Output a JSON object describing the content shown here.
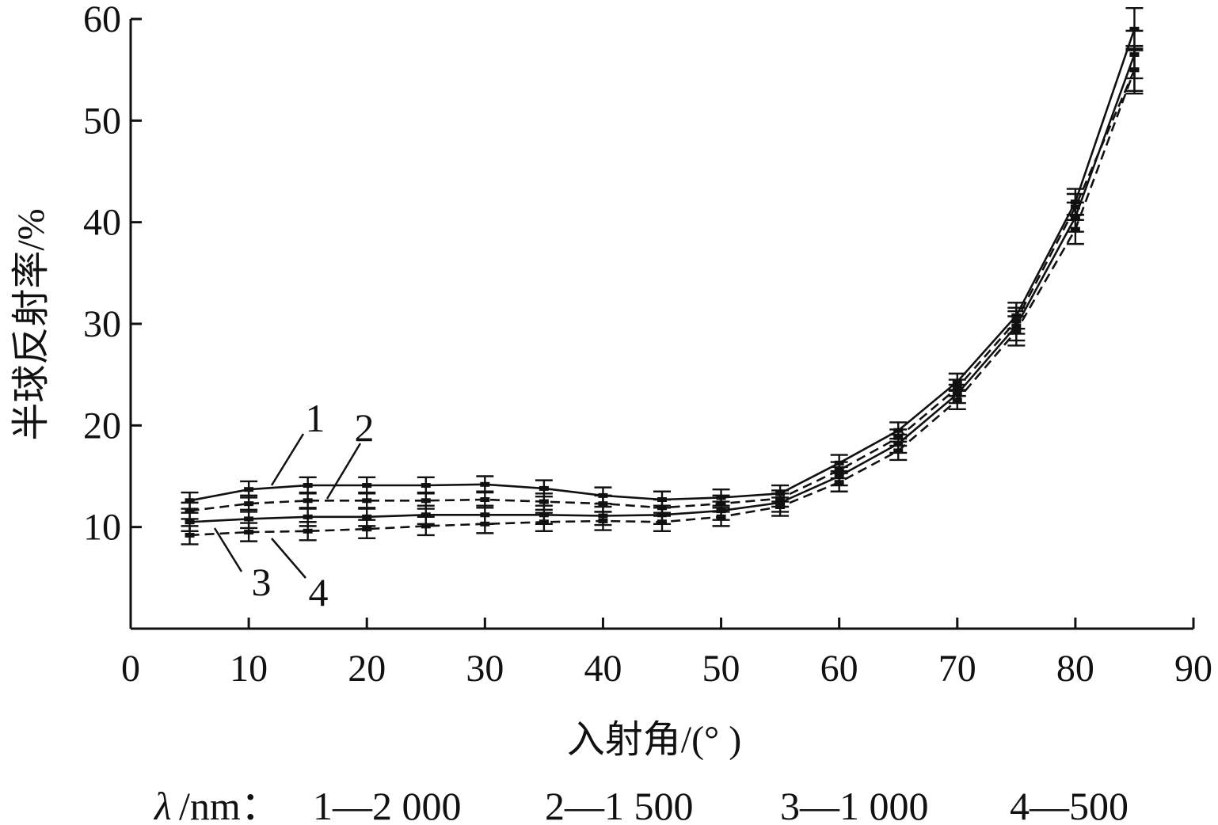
{
  "chart_data": {
    "type": "line",
    "xlabel": "入射角/(° )",
    "ylabel": "半球反射率/%",
    "xlim": [
      0,
      90
    ],
    "ylim": [
      0,
      60
    ],
    "x_ticks": [
      "0",
      "10",
      "20",
      "30",
      "40",
      "50",
      "60",
      "70",
      "80",
      "90"
    ],
    "y_ticks": [
      "10",
      "20",
      "30",
      "40",
      "50",
      "60"
    ],
    "grid": false,
    "legend": {
      "prefix_symbol": "λ",
      "prefix_unit": "/nm：",
      "entries": [
        "1—2 000",
        "2—1 500",
        "3—1 000",
        "4—500"
      ]
    },
    "x": [
      5,
      10,
      15,
      20,
      25,
      30,
      35,
      40,
      45,
      50,
      55,
      60,
      65,
      70,
      75,
      80,
      85
    ],
    "series": [
      {
        "name": "1",
        "dash": "solid",
        "values": [
          12.6,
          13.7,
          14.1,
          14.1,
          14.1,
          14.2,
          13.8,
          13.1,
          12.7,
          12.9,
          13.3,
          16.3,
          19.5,
          24.3,
          30.8,
          42.0,
          59.0
        ],
        "error": 0.8
      },
      {
        "name": "2",
        "dash": "dashed",
        "values": [
          11.6,
          12.3,
          12.6,
          12.6,
          12.6,
          12.7,
          12.5,
          12.3,
          11.9,
          12.3,
          12.8,
          15.6,
          18.8,
          23.7,
          30.3,
          41.5,
          55.0
        ],
        "error": 0.8
      },
      {
        "name": "3",
        "dash": "solid",
        "values": [
          10.5,
          10.8,
          11.0,
          11.0,
          11.2,
          11.2,
          11.2,
          11.1,
          11.2,
          11.6,
          12.4,
          15.0,
          18.2,
          23.1,
          29.8,
          40.5,
          56.5
        ],
        "error": 0.9
      },
      {
        "name": "4",
        "dash": "dashed",
        "values": [
          9.2,
          9.5,
          9.6,
          9.8,
          10.1,
          10.3,
          10.5,
          10.6,
          10.5,
          11.0,
          12.0,
          14.4,
          17.5,
          22.5,
          29.3,
          39.3,
          55.0
        ],
        "error": 0.9
      }
    ]
  }
}
